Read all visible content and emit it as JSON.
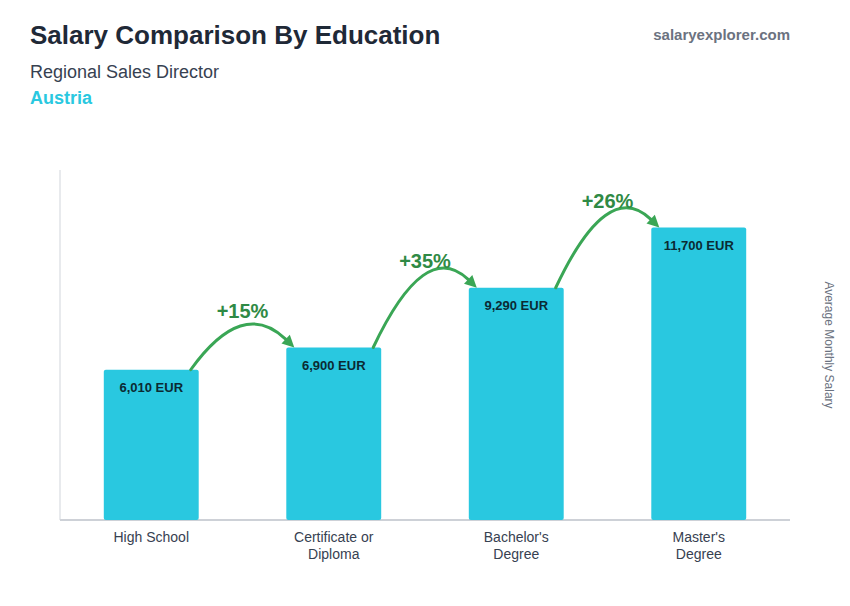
{
  "chart_data": {
    "type": "bar",
    "title": "Salary Comparison By Education",
    "subtitle": [
      "Regional Sales Director",
      "Austria"
    ],
    "y_label": "Average Monthly Salary",
    "categories": [
      "High School",
      "Certificate or\nDiploma",
      "Bachelor's\nDegree",
      "Master's\nDegree"
    ],
    "values": [
      6010,
      6900,
      9290,
      11700
    ],
    "value_labels": [
      "6,010 EUR",
      "6,900 EUR",
      "9,290 EUR",
      "11,700 EUR"
    ],
    "data_labels": true,
    "color": "#29c8e0",
    "ylim": [
      0,
      14000
    ],
    "tick_labels": false,
    "grid": false,
    "annotations": [
      {
        "text": "+15%",
        "between": [
          0,
          1
        ]
      },
      {
        "text": "+35%",
        "between": [
          1,
          2
        ]
      },
      {
        "text": "+26%",
        "between": [
          2,
          3
        ]
      },
      {
        "text": "salaryexplorer.com"
      }
    ]
  }
}
